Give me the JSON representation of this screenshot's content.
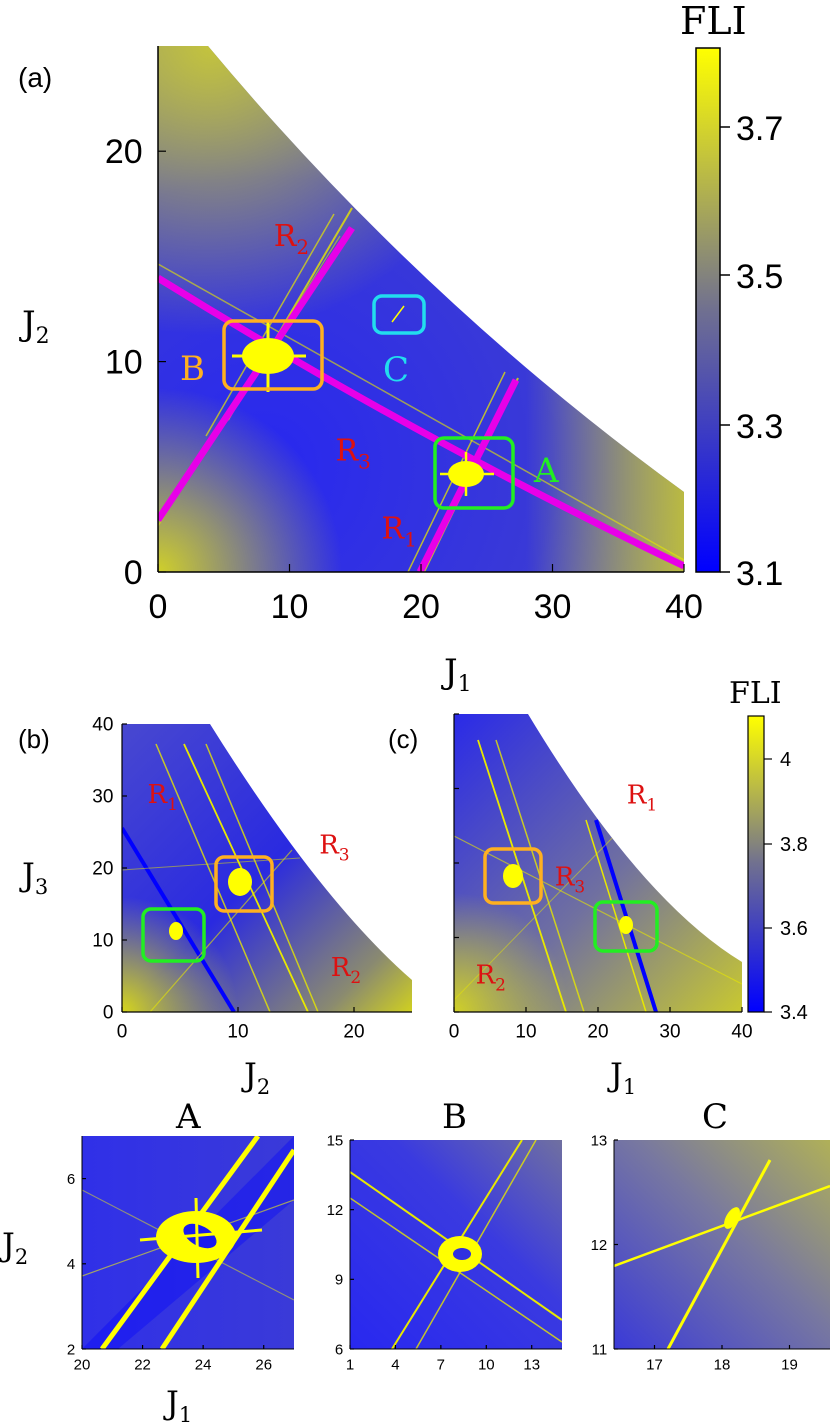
{
  "figure": {
    "colors": {
      "map_low": "#1010ff",
      "map_mid": "#6a6a9a",
      "map_high": "#f2f200",
      "resonance_curve": "#e800e8",
      "resonance_label": "#dd1111",
      "box_A": "#22ee22",
      "box_B": "#ffb020",
      "box_C": "#22ddee"
    },
    "fli_label": "FLI",
    "colorbar_a": {
      "label": "FLI",
      "ticks": [
        "3.7",
        "3.5",
        "3.3",
        "3.1"
      ]
    },
    "colorbar_bc": {
      "label": "FLI",
      "ticks": [
        "4",
        "3.8",
        "3.6",
        "3.4"
      ]
    }
  },
  "chart_data": [
    {
      "id": "a",
      "panel_label": "(a)",
      "type": "heatmap",
      "xlabel": "J",
      "xlabel_sub": "1",
      "ylabel": "J",
      "ylabel_sub": "2",
      "xlim": [
        0,
        40
      ],
      "ylim": [
        0,
        25
      ],
      "xticks": [
        "0",
        "10",
        "20",
        "30",
        "40"
      ],
      "yticks": [
        "0",
        "10",
        "20"
      ],
      "value": "FLI",
      "color_range": [
        3.1,
        3.8
      ],
      "resonance_labels": [
        {
          "text": "R",
          "sub": "2",
          "x": 8.8,
          "y": 15.5
        },
        {
          "text": "R",
          "sub": "3",
          "x": 13.5,
          "y": 5.3
        },
        {
          "text": "R",
          "sub": "1",
          "x": 17.0,
          "y": 1.6
        }
      ],
      "boxes": [
        {
          "label": "A",
          "x0": 21.5,
          "y0": 3.1,
          "x1": 27.0,
          "y1": 6.3
        },
        {
          "label": "B",
          "x0": 5.0,
          "y0": 8.5,
          "x1": 12.5,
          "y1": 11.8
        },
        {
          "label": "C",
          "x0": 16.5,
          "y0": 11.0,
          "x1": 20.5,
          "y1": 12.5
        }
      ]
    },
    {
      "id": "b",
      "panel_label": "(b)",
      "type": "heatmap",
      "xlabel": "J",
      "xlabel_sub": "2",
      "ylabel": "J",
      "ylabel_sub": "3",
      "xlim": [
        0,
        25
      ],
      "ylim": [
        0,
        40
      ],
      "xticks": [
        "0",
        "10",
        "20"
      ],
      "yticks": [
        "0",
        "10",
        "20",
        "30",
        "40"
      ],
      "value": "FLI",
      "resonance_labels": [
        {
          "text": "R",
          "sub": "1",
          "x": 2.2,
          "y": 29
        },
        {
          "text": "R",
          "sub": "3",
          "x": 17.0,
          "y": 22
        },
        {
          "text": "R",
          "sub": "2",
          "x": 18.0,
          "y": 5
        }
      ]
    },
    {
      "id": "c",
      "panel_label": "(c)",
      "type": "heatmap",
      "xlabel": "J",
      "xlabel_sub": "1",
      "xlim": [
        0,
        40
      ],
      "ylim": [
        0,
        40
      ],
      "xticks": [
        "0",
        "10",
        "20",
        "30",
        "40"
      ],
      "value": "FLI",
      "color_range": [
        3.4,
        4.1
      ],
      "resonance_labels": [
        {
          "text": "R",
          "sub": "1",
          "x": 24,
          "y": 28
        },
        {
          "text": "R",
          "sub": "3",
          "x": 14,
          "y": 17
        },
        {
          "text": "R",
          "sub": "2",
          "x": 3,
          "y": 3.8
        }
      ]
    },
    {
      "id": "A",
      "panel_label": "A",
      "type": "heatmap",
      "xlabel": "J",
      "xlabel_sub": "1",
      "ylabel": "J",
      "ylabel_sub": "2",
      "xlim": [
        20,
        27
      ],
      "ylim": [
        2,
        7
      ],
      "xticks": [
        "20",
        "22",
        "24",
        "26"
      ],
      "yticks": [
        "2",
        "4",
        "6"
      ],
      "value": "FLI"
    },
    {
      "id": "B",
      "panel_label": "B",
      "type": "heatmap",
      "xlim": [
        1,
        15
      ],
      "ylim": [
        6,
        15
      ],
      "xticks": [
        "1",
        "4",
        "7",
        "10",
        "13"
      ],
      "yticks": [
        "6",
        "9",
        "12",
        "15"
      ],
      "value": "FLI"
    },
    {
      "id": "C",
      "panel_label": "C",
      "type": "heatmap",
      "xlim": [
        16.4,
        19.6
      ],
      "ylim": [
        11,
        13
      ],
      "xticks": [
        "17",
        "18",
        "19"
      ],
      "yticks": [
        "11",
        "12",
        "13"
      ],
      "value": "FLI"
    }
  ]
}
